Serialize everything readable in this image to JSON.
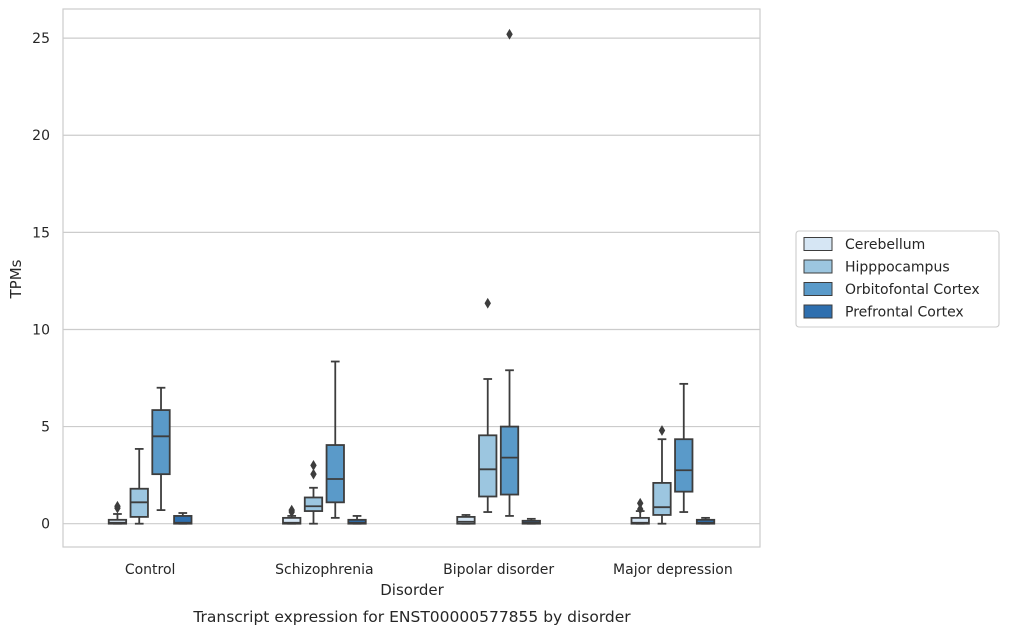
{
  "chart_data": {
    "type": "box",
    "title": "",
    "caption": "Transcript expression for ENST00000577855 by disorder",
    "xlabel": "Disorder",
    "ylabel": "TPMs",
    "ylim": [
      -1.2,
      26.5
    ],
    "yticks": [
      0,
      5,
      10,
      15,
      20,
      25
    ],
    "grid": "horizontal",
    "legend_position": "right",
    "categories": [
      "Control",
      "Schizophrenia",
      "Bipolar disorder",
      "Major depression"
    ],
    "series": [
      {
        "name": "Cerebellum",
        "color": "#d6e6f4",
        "boxes": [
          {
            "whislo": 0.0,
            "q1": 0.0,
            "med": 0.05,
            "q3": 0.2,
            "whishi": 0.5,
            "fliers": [
              0.9,
              0.8
            ]
          },
          {
            "whislo": 0.0,
            "q1": 0.0,
            "med": 0.05,
            "q3": 0.3,
            "whishi": 0.4,
            "fliers": [
              0.7,
              0.6
            ]
          },
          {
            "whislo": 0.0,
            "q1": 0.0,
            "med": 0.1,
            "q3": 0.35,
            "whishi": 0.45,
            "fliers": []
          },
          {
            "whislo": 0.0,
            "q1": 0.0,
            "med": 0.05,
            "q3": 0.3,
            "whishi": 0.65,
            "fliers": [
              1.05,
              0.75
            ]
          }
        ]
      },
      {
        "name": "Hipppocampus",
        "color": "#9cc6e0",
        "boxes": [
          {
            "whislo": 0.0,
            "q1": 0.35,
            "med": 1.1,
            "q3": 1.8,
            "whishi": 3.85,
            "fliers": []
          },
          {
            "whislo": 0.0,
            "q1": 0.65,
            "med": 0.9,
            "q3": 1.35,
            "whishi": 1.85,
            "fliers": [
              3.0,
              2.55
            ]
          },
          {
            "whislo": 0.6,
            "q1": 1.4,
            "med": 2.8,
            "q3": 4.55,
            "whishi": 7.45,
            "fliers": [
              11.35
            ]
          },
          {
            "whislo": 0.0,
            "q1": 0.45,
            "med": 0.85,
            "q3": 2.1,
            "whishi": 4.35,
            "fliers": [
              4.8
            ]
          }
        ]
      },
      {
        "name": "Orbitofontal Cortex",
        "color": "#5a9ac9",
        "boxes": [
          {
            "whislo": 0.7,
            "q1": 2.55,
            "med": 4.5,
            "q3": 5.85,
            "whishi": 7.0,
            "fliers": []
          },
          {
            "whislo": 0.3,
            "q1": 1.1,
            "med": 2.3,
            "q3": 4.05,
            "whishi": 8.35,
            "fliers": []
          },
          {
            "whislo": 0.4,
            "q1": 1.5,
            "med": 3.4,
            "q3": 5.0,
            "whishi": 7.9,
            "fliers": [
              25.2
            ]
          },
          {
            "whislo": 0.6,
            "q1": 1.65,
            "med": 2.75,
            "q3": 4.35,
            "whishi": 7.2,
            "fliers": []
          }
        ]
      },
      {
        "name": "Prefrontal Cortex",
        "color": "#2e6faf",
        "boxes": [
          {
            "whislo": 0.0,
            "q1": 0.0,
            "med": 0.05,
            "q3": 0.4,
            "whishi": 0.55,
            "fliers": []
          },
          {
            "whislo": 0.0,
            "q1": 0.0,
            "med": 0.05,
            "q3": 0.2,
            "whishi": 0.4,
            "fliers": []
          },
          {
            "whislo": 0.0,
            "q1": 0.0,
            "med": 0.05,
            "q3": 0.15,
            "whishi": 0.25,
            "fliers": []
          },
          {
            "whislo": 0.0,
            "q1": 0.0,
            "med": 0.05,
            "q3": 0.2,
            "whishi": 0.3,
            "fliers": []
          }
        ]
      }
    ]
  }
}
